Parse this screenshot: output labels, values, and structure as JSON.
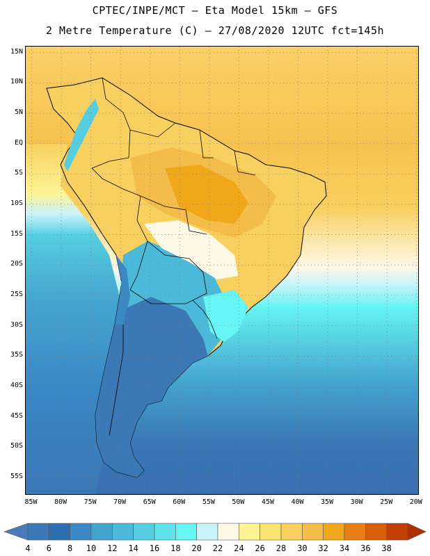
{
  "header": {
    "line1": "CPTEC/INPE/MCT –  Eta Model 15km – GFS",
    "line2": "2 Metre Temperature (C) – 27/08/2020 12UTC fct=145h"
  },
  "map": {
    "variable": "2 Metre Temperature",
    "units": "C",
    "lat_labels": [
      "15N",
      "10N",
      "5N",
      "EQ",
      "5S",
      "10S",
      "15S",
      "20S",
      "25S",
      "30S",
      "35S",
      "40S",
      "45S",
      "50S",
      "55S"
    ],
    "lon_labels": [
      "85W",
      "80W",
      "75W",
      "70W",
      "65W",
      "60W",
      "55W",
      "50W",
      "45W",
      "40W",
      "35W",
      "30W",
      "25W",
      "20W"
    ],
    "ocean_color": "#fab733",
    "land_outline_color": "#000000"
  },
  "colorbar": {
    "labels": [
      "4",
      "6",
      "8",
      "10",
      "12",
      "14",
      "16",
      "18",
      "20",
      "22",
      "24",
      "26",
      "28",
      "30",
      "32",
      "34",
      "36",
      "38"
    ],
    "colors": [
      "#3a78b6",
      "#2e6fb0",
      "#3a88c4",
      "#44a4d0",
      "#4bbad8",
      "#56cee0",
      "#5fe3ea",
      "#66f4f4",
      "#c8f4fa",
      "#fef8e6",
      "#fef494",
      "#fae472",
      "#f8d060",
      "#f4bc48",
      "#f0a81a",
      "#e87e16",
      "#d85e08",
      "#c23e04"
    ],
    "under_color": "#4a7ab8",
    "over_color": "#b03004"
  }
}
